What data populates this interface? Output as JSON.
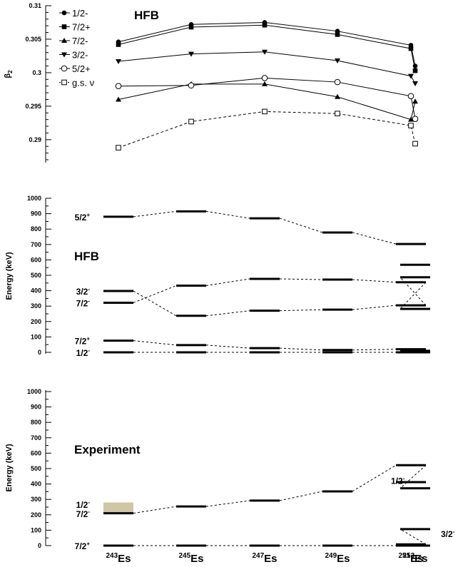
{
  "chart_data": [
    {
      "type": "line",
      "title": "HFB",
      "ylabel": "β2",
      "ylim": [
        0.287,
        0.31
      ],
      "yticks": [
        "0.29",
        "0.295",
        "0.3",
        "0.305",
        "0.31"
      ],
      "grid": false,
      "legend_position": "top-left",
      "categories": [
        "243Es",
        "245Es",
        "247Es",
        "249Es",
        "251Es",
        "253Es"
      ],
      "series": [
        {
          "name": "1/2-",
          "marker": "filled-circle",
          "dashed": false,
          "values": [
            0.3046,
            0.3072,
            0.3075,
            0.3062,
            0.3041,
            0.301
          ]
        },
        {
          "name": "7/2+",
          "marker": "filled-square",
          "dashed": false,
          "values": [
            0.3042,
            0.3068,
            0.3071,
            0.3057,
            0.3036,
            0.3003
          ]
        },
        {
          "name": "7/2-",
          "marker": "filled-triangle-up",
          "dashed": false,
          "values": [
            0.296,
            0.2983,
            0.2983,
            0.2964,
            0.293,
            0.2957
          ]
        },
        {
          "name": "3/2-",
          "marker": "filled-triangle-down",
          "dashed": false,
          "values": [
            0.3017,
            0.3028,
            0.3031,
            0.3018,
            0.2995,
            0.2984
          ]
        },
        {
          "name": "5/2+",
          "marker": "open-circle",
          "dashed": false,
          "values": [
            0.298,
            0.2981,
            0.2992,
            0.2986,
            0.2965,
            0.2931
          ]
        },
        {
          "name": "g.s. ν",
          "marker": "open-square",
          "dashed": true,
          "values": [
            0.2888,
            0.2927,
            0.2942,
            0.2939,
            0.2921,
            0.2894
          ]
        }
      ]
    },
    {
      "type": "level-scheme",
      "title": "HFB",
      "ylabel": "Energy (keV)",
      "ylim": [
        0,
        1000
      ],
      "yticks": [
        "0",
        "100",
        "200",
        "300",
        "400",
        "500",
        "600",
        "700",
        "800",
        "900",
        "1000"
      ],
      "grid": false,
      "categories": [
        "243Es",
        "245Es",
        "247Es",
        "249Es",
        "251Es",
        "253Es"
      ],
      "labels": [
        {
          "text": "5/2",
          "sup": "+",
          "energy": 880
        },
        {
          "text": "3/2",
          "sup": "-",
          "energy": 398
        },
        {
          "text": "7/2",
          "sup": "-",
          "energy": 322
        },
        {
          "text": "7/2",
          "sup": "+",
          "energy": 76
        },
        {
          "text": "1/2",
          "sup": "-",
          "energy": 0
        }
      ],
      "levels": [
        {
          "name": "5/2+",
          "energies": [
            880,
            915,
            870,
            778,
            703,
            null
          ]
        },
        {
          "name": "3/2-",
          "energies": [
            398,
            237,
            270,
            277,
            305,
            487
          ]
        },
        {
          "name": "7/2-",
          "energies": [
            322,
            433,
            477,
            472,
            455,
            282
          ]
        },
        {
          "name": "7/2+",
          "energies": [
            76,
            47,
            27,
            15,
            20,
            10
          ]
        },
        {
          "name": "1/2-",
          "energies": [
            0,
            0,
            0,
            0,
            0,
            0
          ]
        },
        {
          "name": "",
          "energies": [
            null,
            null,
            null,
            null,
            null,
            568
          ]
        }
      ]
    },
    {
      "type": "level-scheme",
      "title": "Experiment",
      "ylabel": "Energy (keV)",
      "ylim": [
        0,
        1000
      ],
      "yticks": [
        "0",
        "100",
        "200",
        "300",
        "400",
        "500",
        "600",
        "700",
        "800",
        "900",
        "1000"
      ],
      "grid": false,
      "categories": [
        "243Es",
        "245Es",
        "247Es",
        "249Es",
        "251Es",
        "253Es"
      ],
      "highlight_band": {
        "category": "243Es",
        "from": 210,
        "to": 280,
        "color": "#cfc6a6"
      },
      "labels": [
        {
          "text": "1/2",
          "sup": "-",
          "energy": 268
        },
        {
          "text": "7/2",
          "sup": "-",
          "energy": 208
        },
        {
          "text": "7/2",
          "sup": "+",
          "energy": 0
        }
      ],
      "inline_labels": [
        {
          "text": "1/2",
          "sup": "-",
          "category": "251Es",
          "energy": 423
        },
        {
          "text": "3/2",
          "sup": "-",
          "category": "253Es",
          "energy": 78
        }
      ],
      "levels": [
        {
          "name": "7/2+",
          "energies": [
            0,
            0,
            0,
            0,
            0,
            0
          ]
        },
        {
          "name": "7/2-",
          "energies": [
            210,
            254,
            292,
            352,
            522,
            372
          ]
        },
        {
          "name": "1/2-",
          "energies": [
            null,
            null,
            null,
            null,
            412,
            null
          ]
        },
        {
          "name": "3/2-",
          "energies": [
            null,
            null,
            null,
            null,
            8,
            107
          ]
        }
      ]
    }
  ],
  "x_axis": {
    "isotopes": [
      {
        "mass": "243",
        "symbol": "Es"
      },
      {
        "mass": "245",
        "symbol": "Es"
      },
      {
        "mass": "247",
        "symbol": "Es"
      },
      {
        "mass": "249",
        "symbol": "Es"
      },
      {
        "mass": "251",
        "symbol": "Es"
      },
      {
        "mass": "253",
        "symbol": "Es"
      }
    ]
  }
}
